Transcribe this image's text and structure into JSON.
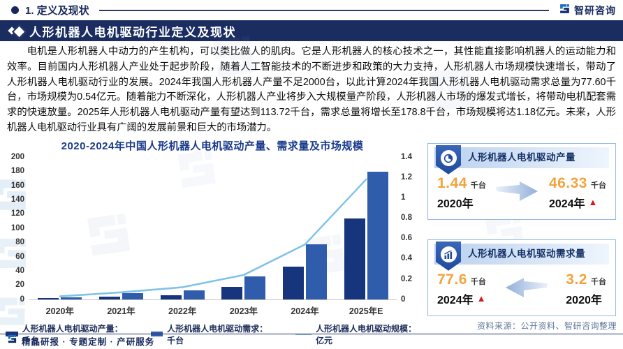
{
  "page": {
    "section_label": "1. 定义及现状",
    "brand": "智研咨询",
    "title": "人形机器人电机驱动行业定义及现状",
    "paragraph": "电机是人形机器人中动力的产生机构，可以类比做人的肌肉。它是人形机器人的核心技术之一，其性能直接影响机器人的运动能力和效率。目前国内人形机器人产业处于起步阶段，随着人工智能技术的不断进步和政策的大力支持，人形机器人市场规模快速增长，带动了人形机器人电机驱动行业的发展。2024年我国人形机器人产量不足2000台，以此计算2024年我国人形机器人电机驱动需求总量为77.60千台，市场规模为0.54亿元。随着能力不断深化，人形机器人产业将步入大规模量产阶段，人形机器人市场的爆发式增长，将带动电机配套需求的快速放量。2025年人形机器人电机驱动产量有望达到113.72千台，需求总量将增长至178.8千台，市场规模将达1.18亿元。未来，人形机器人电机驱动行业具有广阔的发展前景和巨大的市场潜力。",
    "source_note": "资料来源：公开资料、智研咨询整理",
    "footer_tagline": "精品研报 · 专题定制 · 产研服务"
  },
  "chart_data": {
    "type": "bar+line",
    "title": "2020-2024年中国人形机器人电机驱动产量、需求量及市场规模",
    "categories": [
      "2020年",
      "2021年",
      "2022年",
      "2023年",
      "2024年",
      "2025年E"
    ],
    "series": [
      {
        "name": "人形机器人电机驱动产量：千台",
        "type": "bar",
        "axis": "left",
        "color": "#16357d",
        "values": [
          1.44,
          3.7,
          6,
          17,
          46.33,
          113.72
        ]
      },
      {
        "name": "人形机器人电机驱动需求：千台",
        "type": "bar",
        "axis": "left",
        "color": "#2f5dac",
        "values": [
          3.2,
          8.2,
          13,
          32,
          77.6,
          178.8
        ]
      },
      {
        "name": "人形机器人电机驱动规模：亿元",
        "type": "line",
        "axis": "right",
        "color": "#7fc2e8",
        "values": [
          0.03,
          0.07,
          0.12,
          0.24,
          0.54,
          1.18
        ]
      }
    ],
    "left_axis": {
      "min": 0,
      "max": 200,
      "ticks": [
        "0",
        "20",
        "40",
        "60",
        "80",
        "100",
        "120",
        "140",
        "160",
        "180",
        "200"
      ]
    },
    "right_axis": {
      "min": 0,
      "max": 1.4,
      "ticks": [
        "0",
        "0.2",
        "0.4",
        "0.6",
        "0.8",
        "1",
        "1.2",
        "1.4"
      ]
    },
    "grid": false,
    "legend_position": "bottom"
  },
  "cards": [
    {
      "title": "人形机器人电机驱动产量",
      "icon": "pie-gauge-icon",
      "arrow_direction": "right",
      "left": {
        "value": "1.44",
        "unit": "千台",
        "year": "2020年",
        "up": ""
      },
      "right": {
        "value": "46.33",
        "unit": "千台",
        "year": "2024年",
        "up": "▲"
      }
    },
    {
      "title": "人形机器人电机驱动需求量",
      "icon": "bar-growth-icon",
      "arrow_direction": "left",
      "left": {
        "value": "77.6",
        "unit": "千台",
        "year": "2024年",
        "up": "▲"
      },
      "right": {
        "value": "3.2",
        "unit": "千台",
        "year": "2020年",
        "up": ""
      }
    }
  ]
}
